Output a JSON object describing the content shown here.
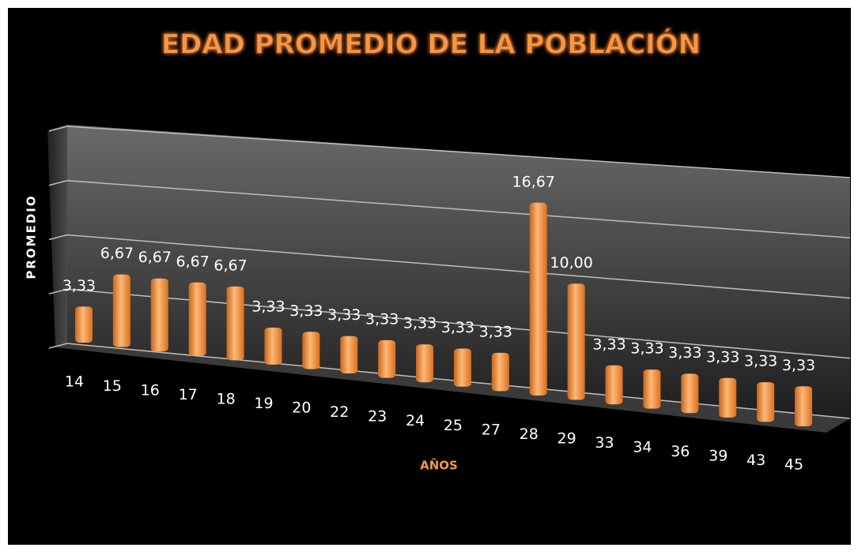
{
  "chart_data": {
    "type": "bar3d",
    "title": "EDAD PROMEDIO DE LA POBLACIÓN",
    "x_label": "AÑOS",
    "y_label": "PROMEDIO",
    "categories": [
      "14",
      "15",
      "16",
      "17",
      "18",
      "19",
      "20",
      "22",
      "23",
      "24",
      "25",
      "27",
      "28",
      "29",
      "33",
      "34",
      "36",
      "39",
      "43",
      "45"
    ],
    "values": [
      3.33,
      6.67,
      6.67,
      6.67,
      6.67,
      3.33,
      3.33,
      3.33,
      3.33,
      3.33,
      3.33,
      3.33,
      16.67,
      10.0,
      3.33,
      3.33,
      3.33,
      3.33,
      3.33,
      3.33
    ],
    "value_labels": [
      "3,33",
      "6,67",
      "6,67",
      "6,67",
      "6,67",
      "3,33",
      "3,33",
      "3,33",
      "3,33",
      "3,33",
      "3,33",
      "3,33",
      "16,67",
      "10,00",
      "3,33",
      "3,33",
      "3,33",
      "3,33",
      "3,33",
      "3,33"
    ],
    "color": "#f79646",
    "ylim": [
      0,
      20
    ],
    "yticks": [
      0,
      5,
      10,
      15,
      20
    ],
    "grid": true
  }
}
